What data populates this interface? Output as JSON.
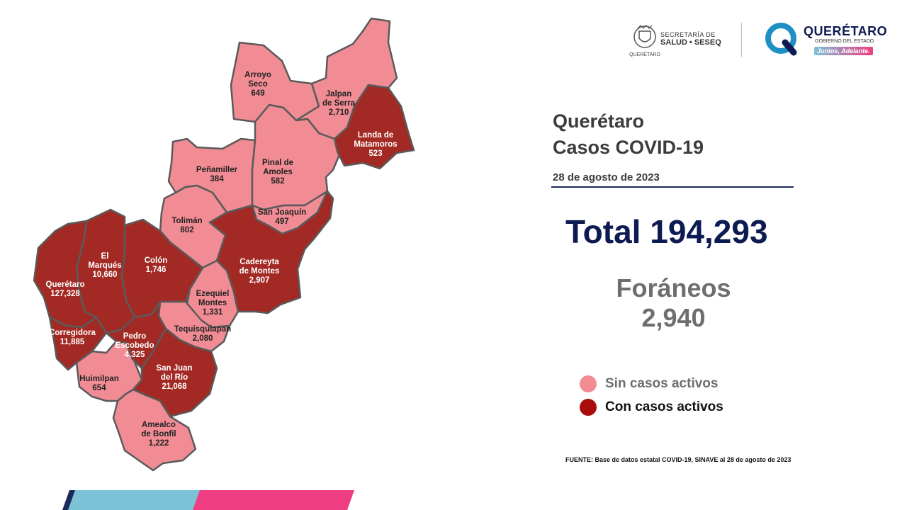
{
  "header": {
    "dept_line1": "SECRETARÍA DE",
    "dept_line2": "SALUD • SESEQ",
    "seal_caption": "QUERÉTARO",
    "brand_title": "QUERÉTARO",
    "brand_subtitle": "GOBIERNO DEL ESTADO",
    "brand_slogan": "Juntos, Adelante."
  },
  "title_line1": "Querétaro",
  "title_line2": "Casos COVID-19",
  "date": "28 de agosto de 2023",
  "total": "Total 194,293",
  "foraneos_label": "Foráneos",
  "foraneos_value": "2,940",
  "legend": {
    "inactive": {
      "label": "Sin casos activos",
      "color": "#f18c95"
    },
    "active": {
      "label": "Con casos activos",
      "color": "#a80c0c"
    }
  },
  "source": "FUENTE: Base de datos estatal  COVID-19,  SINAVE  al 28 de agosto de 2023",
  "colors": {
    "active_fill": "#a32a24",
    "inactive_fill": "#f18c95",
    "border": "#5a5a5a",
    "accent_pink": "#ef3d82",
    "accent_blue": "#7cc3d8",
    "navy": "#0e1a52"
  },
  "municipalities": [
    {
      "id": "arroyo-seco",
      "name": [
        "Arroyo",
        "Seco"
      ],
      "cases": "649",
      "active": false
    },
    {
      "id": "jalpan-de-serra",
      "name": [
        "Jalpan",
        "de Serra"
      ],
      "cases": "2,710",
      "active": false
    },
    {
      "id": "landa-de-matamoros",
      "name": [
        "Landa de",
        "Matamoros"
      ],
      "cases": "523",
      "active": true
    },
    {
      "id": "penamiller",
      "name": [
        "Peñamiller"
      ],
      "cases": "384",
      "active": false
    },
    {
      "id": "pinal-de-amoles",
      "name": [
        "Pinal de",
        "Amoles"
      ],
      "cases": "582",
      "active": false
    },
    {
      "id": "san-joaquin",
      "name": [
        "San Joaquín"
      ],
      "cases": "497",
      "active": false
    },
    {
      "id": "toliman",
      "name": [
        "Tolimán"
      ],
      "cases": "802",
      "active": false
    },
    {
      "id": "el-marques",
      "name": [
        "El",
        "Marqués"
      ],
      "cases": "10,660",
      "active": true
    },
    {
      "id": "colon",
      "name": [
        "Colón"
      ],
      "cases": "1,746",
      "active": true
    },
    {
      "id": "cadereyta-de-montes",
      "name": [
        "Cadereyta",
        "de Montes"
      ],
      "cases": "2,907",
      "active": true
    },
    {
      "id": "queretaro",
      "name": [
        "Querétaro"
      ],
      "cases": "127,328",
      "active": true
    },
    {
      "id": "ezequiel-montes",
      "name": [
        "Ezequiel",
        "Montes"
      ],
      "cases": "1,331",
      "active": false
    },
    {
      "id": "tequisquiapan",
      "name": [
        "Tequisquiapan"
      ],
      "cases": "2,080",
      "active": false
    },
    {
      "id": "corregidora",
      "name": [
        "Corregidora"
      ],
      "cases": "11,885",
      "active": true
    },
    {
      "id": "pedro-escobedo",
      "name": [
        "Pedro",
        "Escobedo"
      ],
      "cases": "4,325",
      "active": true
    },
    {
      "id": "san-juan-del-rio",
      "name": [
        "San Juan",
        "del Río"
      ],
      "cases": "21,068",
      "active": true
    },
    {
      "id": "huimilpan",
      "name": [
        "Huimilpan"
      ],
      "cases": "654",
      "active": false
    },
    {
      "id": "amealco-de-bonfil",
      "name": [
        "Amealco",
        "de Bonfil"
      ],
      "cases": "1,222",
      "active": false
    }
  ]
}
